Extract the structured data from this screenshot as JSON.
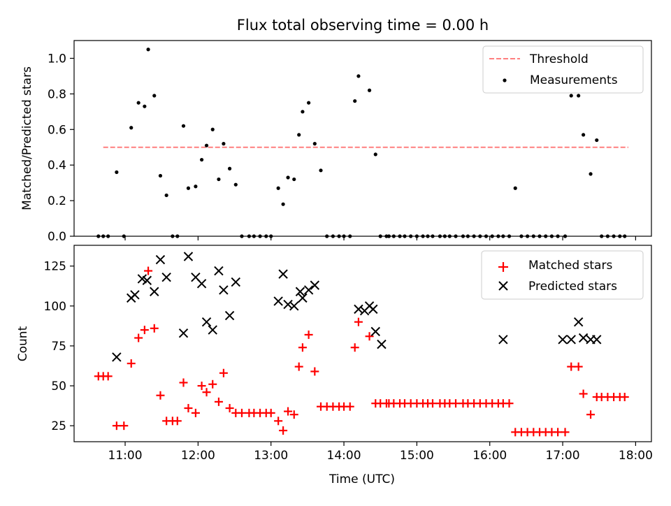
{
  "chart_data": [
    {
      "type": "scatter",
      "title": "Flux total observing time = 0.00 h",
      "xlabel": "",
      "ylabel": "Matched/Predicted stars",
      "xlim": [
        "10:18",
        "18:13"
      ],
      "ylim": [
        0,
        1.1
      ],
      "xticks": [
        "11:00",
        "12:00",
        "13:00",
        "14:00",
        "15:00",
        "16:00",
        "17:00",
        "18:00"
      ],
      "yticks": [
        "0.0",
        "0.2",
        "0.4",
        "0.6",
        "0.8",
        "1.0"
      ],
      "grid": false,
      "legend_position": "top-right",
      "threshold": {
        "name": "Threshold",
        "value": 0.5,
        "x_start": "10:42",
        "x_end": "17:54",
        "color": "#ff7f7f",
        "style": "dashed"
      },
      "series": [
        {
          "name": "Measurements",
          "color": "#000000",
          "x": [
            "10:38",
            "10:42",
            "10:46",
            "10:53",
            "10:59",
            "11:05",
            "11:11",
            "11:16",
            "11:19",
            "11:24",
            "11:29",
            "11:34",
            "11:39",
            "11:43",
            "11:48",
            "11:52",
            "11:58",
            "12:03",
            "12:07",
            "12:12",
            "12:17",
            "12:21",
            "12:26",
            "12:31",
            "12:36",
            "12:42",
            "12:46",
            "12:51",
            "12:56",
            "13:00",
            "13:06",
            "13:10",
            "13:14",
            "13:19",
            "13:23",
            "13:26",
            "13:31",
            "13:36",
            "13:41",
            "13:46",
            "13:51",
            "13:56",
            "14:00",
            "14:05",
            "14:09",
            "14:12",
            "14:21",
            "14:26",
            "14:30",
            "14:35",
            "14:37",
            "14:41",
            "14:46",
            "14:50",
            "14:55",
            "15:00",
            "15:05",
            "15:09",
            "15:13",
            "15:19",
            "15:23",
            "15:27",
            "15:32",
            "15:38",
            "15:42",
            "15:47",
            "15:52",
            "15:57",
            "16:02",
            "16:07",
            "16:11",
            "16:16",
            "16:21",
            "16:26",
            "16:31",
            "16:36",
            "16:41",
            "16:46",
            "16:51",
            "16:56",
            "17:02",
            "17:07",
            "17:13",
            "17:17",
            "17:23",
            "17:28",
            "17:32",
            "17:37",
            "17:42",
            "17:47",
            "17:51"
          ],
          "y": [
            0.0,
            0.0,
            0.0,
            0.36,
            0.0,
            0.61,
            0.75,
            0.73,
            1.05,
            0.79,
            0.34,
            0.23,
            0.0,
            0.0,
            0.62,
            0.27,
            0.28,
            0.43,
            0.51,
            0.6,
            0.32,
            0.52,
            0.38,
            0.29,
            0.0,
            0.0,
            0.0,
            0.0,
            0.0,
            0.0,
            0.27,
            0.18,
            0.33,
            0.32,
            0.57,
            0.7,
            0.75,
            0.52,
            0.37,
            0.0,
            0.0,
            0.0,
            0.0,
            0.0,
            0.76,
            0.9,
            0.82,
            0.46,
            0.0,
            0.0,
            0.0,
            0.0,
            0.0,
            0.0,
            0.0,
            0.0,
            0.0,
            0.0,
            0.0,
            0.0,
            0.0,
            0.0,
            0.0,
            0.0,
            0.0,
            0.0,
            0.0,
            0.0,
            0.0,
            0.0,
            0.0,
            0.0,
            0.27,
            0.0,
            0.0,
            0.0,
            0.0,
            0.0,
            0.0,
            0.0,
            0.0,
            0.79,
            0.79,
            0.57,
            0.35,
            0.54,
            0.0,
            0.0,
            0.0,
            0.0,
            0.0
          ]
        }
      ]
    },
    {
      "type": "scatter",
      "title": "",
      "xlabel": "Time (UTC)",
      "ylabel": "Count",
      "xlim": [
        "10:18",
        "18:13"
      ],
      "ylim": [
        15,
        138
      ],
      "xticks": [
        "11:00",
        "12:00",
        "13:00",
        "14:00",
        "15:00",
        "16:00",
        "17:00",
        "18:00"
      ],
      "yticks": [
        "25",
        "50",
        "75",
        "100",
        "125"
      ],
      "grid": false,
      "legend_position": "top-right",
      "series": [
        {
          "name": "Matched stars",
          "color": "#ff0000",
          "marker": "plus",
          "x": [
            "10:38",
            "10:42",
            "10:46",
            "10:53",
            "10:59",
            "11:05",
            "11:11",
            "11:16",
            "11:19",
            "11:24",
            "11:29",
            "11:34",
            "11:39",
            "11:43",
            "11:48",
            "11:52",
            "11:58",
            "12:03",
            "12:07",
            "12:12",
            "12:17",
            "12:21",
            "12:26",
            "12:31",
            "12:36",
            "12:42",
            "12:46",
            "12:51",
            "12:56",
            "13:00",
            "13:06",
            "13:10",
            "13:14",
            "13:19",
            "13:23",
            "13:26",
            "13:31",
            "13:36",
            "13:41",
            "13:46",
            "13:51",
            "13:56",
            "14:00",
            "14:05",
            "14:09",
            "14:12",
            "14:21",
            "14:26",
            "14:30",
            "14:35",
            "14:37",
            "14:41",
            "14:46",
            "14:50",
            "14:55",
            "15:00",
            "15:05",
            "15:09",
            "15:13",
            "15:19",
            "15:23",
            "15:27",
            "15:32",
            "15:38",
            "15:42",
            "15:47",
            "15:52",
            "15:57",
            "16:02",
            "16:07",
            "16:11",
            "16:16",
            "16:21",
            "16:26",
            "16:31",
            "16:36",
            "16:41",
            "16:46",
            "16:51",
            "16:56",
            "17:02",
            "17:07",
            "17:13",
            "17:17",
            "17:23",
            "17:28",
            "17:32",
            "17:37",
            "17:42",
            "17:47",
            "17:51"
          ],
          "y": [
            56,
            56,
            56,
            25,
            25,
            64,
            80,
            85,
            122,
            86,
            44,
            28,
            28,
            28,
            52,
            36,
            33,
            50,
            46,
            51,
            40,
            58,
            36,
            33,
            33,
            33,
            33,
            33,
            33,
            33,
            28,
            22,
            34,
            32,
            62,
            74,
            82,
            59,
            37,
            37,
            37,
            37,
            37,
            37,
            74,
            90,
            81,
            39,
            39,
            39,
            39,
            39,
            39,
            39,
            39,
            39,
            39,
            39,
            39,
            39,
            39,
            39,
            39,
            39,
            39,
            39,
            39,
            39,
            39,
            39,
            39,
            39,
            21,
            21,
            21,
            21,
            21,
            21,
            21,
            21,
            21,
            62,
            62,
            45,
            32,
            43,
            43,
            43,
            43,
            43,
            43
          ]
        },
        {
          "name": "Predicted stars",
          "color": "#000000",
          "marker": "x",
          "x": [
            "10:53",
            "11:05",
            "11:08",
            "11:14",
            "11:18",
            "11:24",
            "11:29",
            "11:34",
            "11:48",
            "11:52",
            "11:58",
            "12:03",
            "12:07",
            "12:12",
            "12:17",
            "12:21",
            "12:26",
            "12:31",
            "13:06",
            "13:10",
            "13:14",
            "13:19",
            "13:24",
            "13:26",
            "13:31",
            "13:36",
            "14:12",
            "14:17",
            "14:21",
            "14:24",
            "14:26",
            "14:31",
            "16:11",
            "17:00",
            "17:07",
            "17:13",
            "17:17",
            "17:23",
            "17:28"
          ],
          "y": [
            68,
            105,
            107,
            117,
            116,
            109,
            129,
            118,
            83,
            131,
            118,
            114,
            90,
            85,
            122,
            110,
            94,
            115,
            103,
            120,
            101,
            100,
            109,
            105,
            110,
            113,
            98,
            97,
            100,
            98,
            84,
            76,
            79,
            79,
            79,
            90,
            80,
            79,
            79
          ]
        }
      ]
    }
  ]
}
